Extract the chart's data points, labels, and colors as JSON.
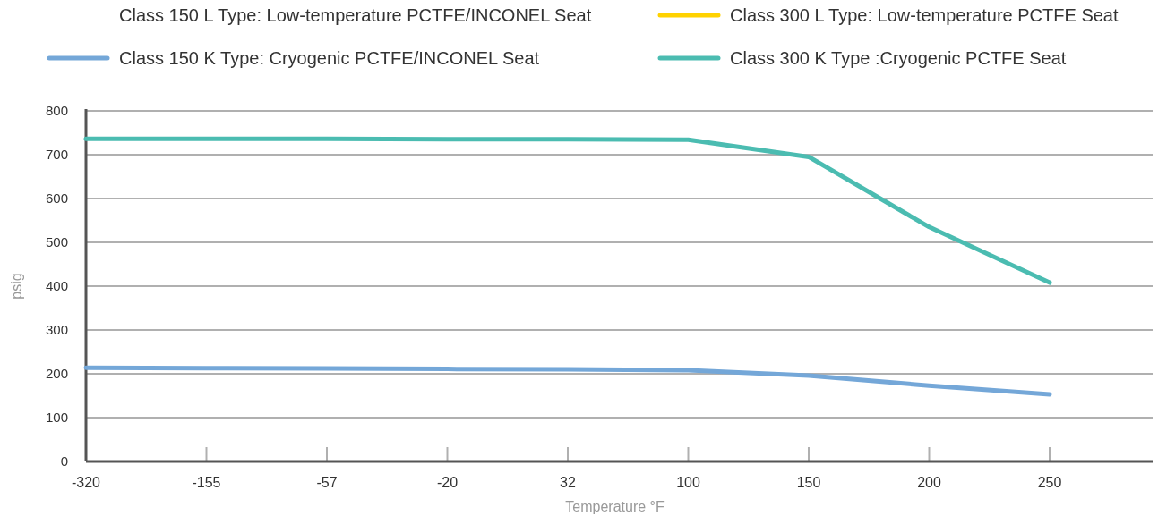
{
  "chart_data": {
    "type": "line",
    "xlabel": "Temperature °F",
    "ylabel": "psig",
    "categories": [
      "-320",
      "-155",
      "-57",
      "-20",
      "32",
      "100",
      "150",
      "200",
      "250"
    ],
    "ylim": [
      0,
      800
    ],
    "yticks": [
      0,
      100,
      200,
      300,
      400,
      500,
      600,
      700,
      800
    ],
    "grid": "y",
    "legend": "top",
    "line_style": "solid",
    "marker": "none",
    "series": [
      {
        "name": "Class 150 L Type: Low-temperature  PCTFE/INCONEL Seat",
        "values": [
          null,
          null,
          null,
          null,
          null,
          null,
          null,
          null,
          null
        ]
      },
      {
        "name": "Class 300 L Type: Low-temperature PCTFE Seat",
        "color": "#ffd200",
        "values": [
          null,
          null,
          null,
          null,
          null,
          null,
          null,
          null,
          null
        ]
      },
      {
        "name": "Class 150 K Type: Cryogenic PCTFE/INCONEL Seat",
        "color": "#74a7d8",
        "values": [
          214,
          213,
          212,
          211,
          210,
          208,
          196,
          173,
          153
        ]
      },
      {
        "name": "Class 300 K Type :Cryogenic PCTFE Seat",
        "color": "#4bbcb1",
        "values": [
          736,
          736,
          736,
          735,
          735,
          734,
          695,
          535,
          408
        ]
      }
    ]
  }
}
